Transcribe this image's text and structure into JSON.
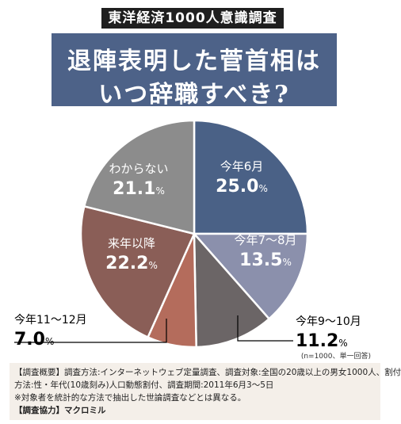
{
  "header": {
    "badge": "東洋経済1000人意識調査",
    "title_line1": "退陣表明した菅首相は",
    "title_line2": "いつ辞職すべき?"
  },
  "chart_data": {
    "type": "pie",
    "title": "",
    "slices": [
      {
        "label": "今年6月",
        "value": 25.0,
        "value_text": "25.0",
        "unit": "%",
        "color": "#4a6186",
        "label_color": "#ffffff",
        "callout": false
      },
      {
        "label": "今年7～8月",
        "value": 13.5,
        "value_text": "13.5",
        "unit": "%",
        "color": "#8b90ac",
        "label_color": "#ffffff",
        "callout": false
      },
      {
        "label": "今年9～10月",
        "value": 11.2,
        "value_text": "11.2",
        "unit": "%",
        "color": "#6b6566",
        "label_color": "#000000",
        "callout": true
      },
      {
        "label": "今年11～12月",
        "value": 7.0,
        "value_text": "7.0",
        "unit": "%",
        "color": "#b46c5c",
        "label_color": "#000000",
        "callout": true
      },
      {
        "label": "来年以降",
        "value": 22.2,
        "value_text": "22.2",
        "unit": "%",
        "color": "#8a5e57",
        "label_color": "#ffffff",
        "callout": false
      },
      {
        "label": "わからない",
        "value": 21.1,
        "value_text": "21.1",
        "unit": "%",
        "color": "#8c8c8c",
        "label_color": "#ffffff",
        "callout": false
      }
    ]
  },
  "sample_note": "(n=1000、単一回答)",
  "notes": {
    "line1": "【調査概要】調査方法:インターネットウェブ定量調査、調査対象:全国の20歳以上の男女1000人、割付",
    "line2": "方法:性・年代(10歳刻み)人口動態割付、調査期間:2011年6月3～5日",
    "line3": "※対象者を統計的な方法で抽出した世論調査などとは異なる。",
    "line4": "【調査協力】マクロミル"
  }
}
